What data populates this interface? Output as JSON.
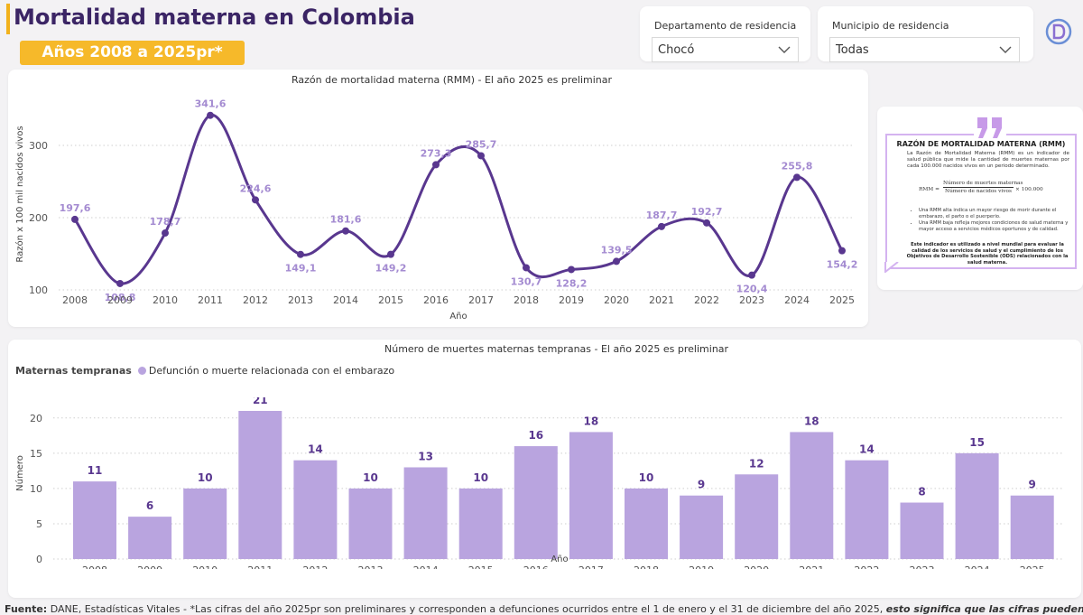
{
  "header": {
    "title": "Mortalidad materna en Colombia",
    "badge": "Años 2008 a 2025pr*"
  },
  "filters": {
    "departamento": {
      "label": "Departamento de residencia",
      "value": "Chocó"
    },
    "municipio": {
      "label": "Municipio de residencia",
      "value": "Todas"
    }
  },
  "colors": {
    "line": "#59378f",
    "bar": "#b9a4df",
    "bar_label": "#59378f",
    "line_label": "#a48bd1",
    "title_purple": "#3b2565",
    "badge": "#f6b92a"
  },
  "info_card": {
    "title": "RAZÓN DE MORTALIDAD MATERNA (RMM)",
    "body": "La Razón de Mortalidad Materna (RMM) es un indicador de salud pública que mide la cantidad de muertes maternas por cada 100.000 nacidos vivos en un periodo determinado.",
    "formula_lhs": "RMM =",
    "formula_num": "Número de muertes maternas",
    "formula_den": "Número de nacidos vivos",
    "formula_rhs": "× 100.000",
    "bullet_1": "Una RMM alta indica un mayor riesgo de morir durante el embarazo, el parto o el puerperio.",
    "bullet_2": "Una RMM baja refleja mejores condiciones de salud materna y mayor acceso a servicios médicos oportunos y de calidad.",
    "footer": "Este indicador es utilizado a nivel mundial para evaluar la calidad de los servicios de salud y el cumplimiento de los Objetivos de Desarrollo Sostenible (ODS) relacionados con la salud materna."
  },
  "chart_data": [
    {
      "type": "line",
      "title": "Razón de mortalidad materna (RMM) - El año 2025 es preliminar",
      "xlabel": "Año",
      "ylabel": "Razón x 100 mil nacidos vivos",
      "categories": [
        "2008",
        "2009",
        "2010",
        "2011",
        "2012",
        "2013",
        "2014",
        "2015",
        "2016",
        "2017",
        "2018",
        "2019",
        "2020",
        "2021",
        "2022",
        "2023",
        "2024",
        "2025"
      ],
      "values": [
        197.6,
        108.8,
        178.7,
        341.6,
        224.6,
        149.1,
        181.6,
        149.2,
        273.3,
        285.7,
        130.7,
        128.2,
        139.5,
        187.7,
        192.7,
        120.4,
        255.8,
        154.2
      ],
      "labels": [
        "197,6",
        "108,8",
        "178,7",
        "341,6",
        "224,6",
        "149,1",
        "181,6",
        "149,2",
        "273,3",
        "285,7",
        "130,7",
        "128,2",
        "139,5",
        "187,7",
        "192,7",
        "120,4",
        "255,8",
        "154,2"
      ],
      "yticks": [
        100,
        200,
        300
      ],
      "ylim": [
        95,
        370
      ],
      "grid": true
    },
    {
      "type": "bar",
      "title": "Número de muertes maternas tempranas - El año 2025 es preliminar",
      "legend_title": "Maternas tempranas",
      "legend_entry": "Defunción o muerte relacionada con el embarazo",
      "xlabel": "Año",
      "ylabel": "Número",
      "categories": [
        "2008",
        "2009",
        "2010",
        "2011",
        "2012",
        "2013",
        "2014",
        "2015",
        "2016",
        "2017",
        "2018",
        "2019",
        "2020",
        "2021",
        "2022",
        "2023",
        "2024",
        "2025"
      ],
      "values": [
        11,
        6,
        10,
        21,
        14,
        10,
        13,
        10,
        16,
        18,
        10,
        9,
        12,
        18,
        14,
        8,
        15,
        9
      ],
      "yticks": [
        0,
        5,
        10,
        15,
        20
      ],
      "ylim": [
        0,
        21
      ],
      "grid": true
    }
  ],
  "footer": {
    "label": "Fuente:",
    "text": " DANE, Estadísticas Vitales - *Las cifras del año 2025pr son preliminares y corresponden a defunciones ocurridos entre el 1 de enero y el 31 de diciembre del año 2025, ",
    "emphasis": "esto significa que las cifras pueden cambiar",
    "end": "."
  }
}
